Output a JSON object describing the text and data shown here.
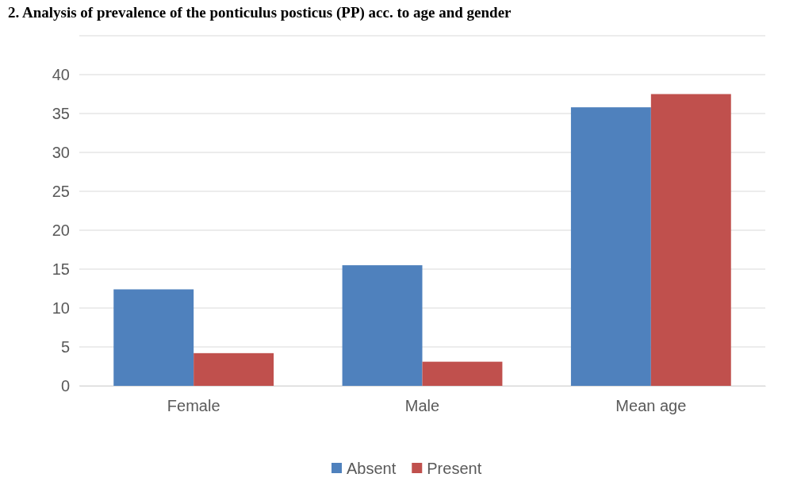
{
  "chart_data": {
    "type": "bar",
    "title": "2. Analysis of prevalence of the ponticulus posticus (PP) acc. to age and gender",
    "categories": [
      "Female",
      "Male",
      "Mean age"
    ],
    "series": [
      {
        "name": "Absent",
        "color": "#4f81bd",
        "values": [
          12.4,
          15.5,
          35.8
        ]
      },
      {
        "name": "Present",
        "color": "#c0504d",
        "values": [
          4.2,
          3.1,
          37.5
        ]
      }
    ],
    "ylim": [
      0,
      45
    ],
    "yticks": [
      0,
      5,
      10,
      15,
      20,
      25,
      30,
      35,
      40,
      {
        "value": 45,
        "label": null
      }
    ],
    "grid": "y",
    "legend": "bottom"
  }
}
